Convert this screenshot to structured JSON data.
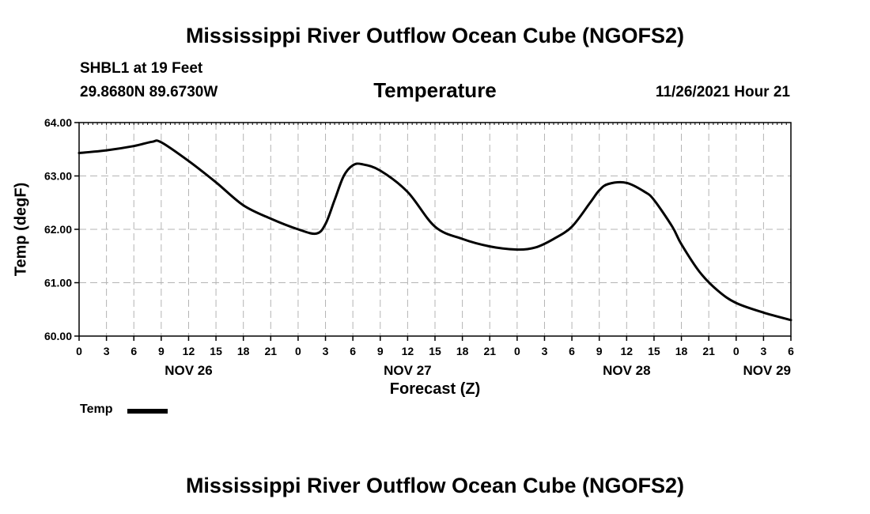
{
  "header": {
    "title": "Mississippi River Outflow Ocean Cube (NGOFS2)",
    "station": "SHBL1 at 19 Feet",
    "coords": "29.8680N  89.6730W",
    "datetime": "11/26/2021 Hour 21"
  },
  "footer": {
    "title": "Mississippi River Outflow Ocean Cube (NGOFS2)"
  },
  "chart_data": {
    "type": "line",
    "title": "Temperature",
    "xlabel": "Forecast (Z)",
    "ylabel": "Temp (degF)",
    "xlim": [
      0,
      78
    ],
    "ylim": [
      60.0,
      64.0
    ],
    "grid": true,
    "x_ticks": [
      0,
      3,
      6,
      9,
      12,
      15,
      18,
      21,
      24,
      27,
      30,
      33,
      36,
      39,
      42,
      45,
      48,
      51,
      54,
      57,
      60,
      63,
      66,
      69,
      72,
      75,
      78
    ],
    "x_tick_labels": [
      "0",
      "3",
      "6",
      "9",
      "12",
      "15",
      "18",
      "21",
      "0",
      "3",
      "6",
      "9",
      "12",
      "15",
      "18",
      "21",
      "0",
      "3",
      "6",
      "9",
      "12",
      "15",
      "18",
      "21",
      "0",
      "3",
      "6"
    ],
    "y_ticks": [
      60.0,
      61.0,
      62.0,
      63.0,
      64.0
    ],
    "y_tick_labels": [
      "60.00",
      "61.00",
      "62.00",
      "63.00",
      "64.00"
    ],
    "day_labels": [
      {
        "x": 12,
        "label": "NOV 26"
      },
      {
        "x": 36,
        "label": "NOV 27"
      },
      {
        "x": 60,
        "label": "NOV 28"
      },
      {
        "x": 78,
        "label": "NOV 29"
      }
    ],
    "legend": {
      "label": "Temp",
      "placement": "bottom-left"
    },
    "series": [
      {
        "name": "Temp",
        "color": "#000000",
        "x": [
          0,
          3,
          6,
          8,
          9,
          12,
          15,
          18,
          21,
          24,
          26,
          27,
          28,
          29,
          30,
          31,
          33,
          36,
          39,
          42,
          45,
          48,
          50,
          52,
          54,
          56,
          57,
          58,
          60,
          62,
          63,
          65,
          66,
          68,
          70,
          72,
          75,
          78
        ],
        "values": [
          63.43,
          63.48,
          63.56,
          63.64,
          63.63,
          63.28,
          62.88,
          62.45,
          62.2,
          62.0,
          61.92,
          62.1,
          62.55,
          63.0,
          63.2,
          63.22,
          63.1,
          62.7,
          62.05,
          61.82,
          61.68,
          61.62,
          61.66,
          61.82,
          62.05,
          62.5,
          62.73,
          62.85,
          62.87,
          62.7,
          62.55,
          62.05,
          61.72,
          61.2,
          60.85,
          60.62,
          60.44,
          60.3
        ]
      }
    ]
  }
}
